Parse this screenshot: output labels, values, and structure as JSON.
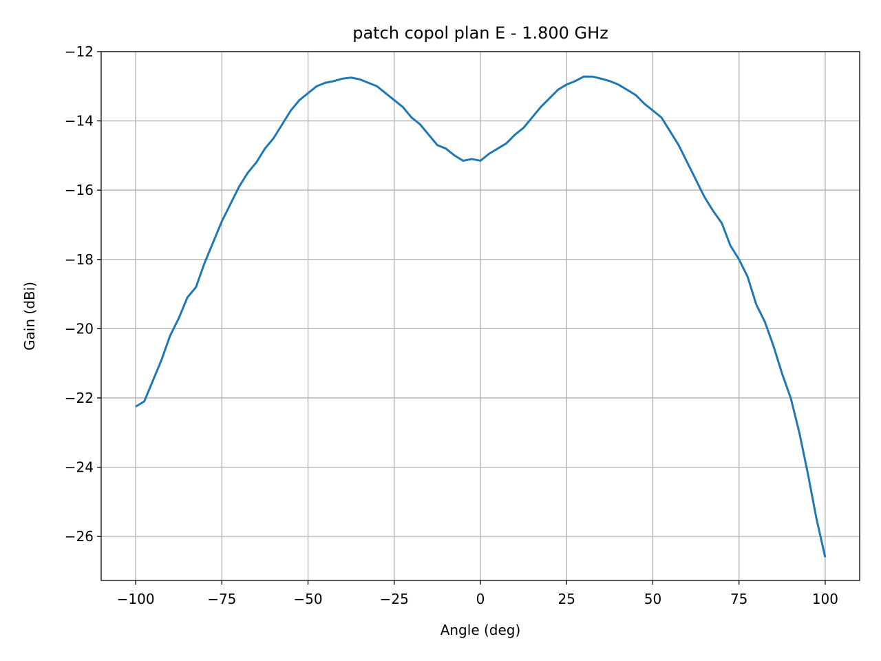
{
  "chart_data": {
    "type": "line",
    "title": "patch copol plan E - 1.800 GHz",
    "x_label": "Angle (deg)",
    "y_label": "Gain (dBi)",
    "x": [
      -100,
      -97.5,
      -95,
      -92.5,
      -90,
      -87.5,
      -85,
      -82.5,
      -80,
      -77.5,
      -75,
      -72.5,
      -70,
      -67.5,
      -65,
      -62.5,
      -60,
      -57.5,
      -55,
      -52.5,
      -50,
      -47.5,
      -45,
      -42.5,
      -40,
      -37.5,
      -35,
      -32.5,
      -30,
      -27.5,
      -25,
      -22.5,
      -20,
      -17.5,
      -15,
      -12.5,
      -10,
      -7.5,
      -5,
      -2.5,
      0,
      2.5,
      5,
      7.5,
      10,
      12.5,
      15,
      17.5,
      20,
      22.5,
      25,
      27.5,
      30,
      32.5,
      35,
      37.5,
      40,
      42.5,
      45,
      47.5,
      50,
      52.5,
      55,
      57.5,
      60,
      62.5,
      65,
      67.5,
      70,
      72.5,
      75,
      77.5,
      80,
      82.5,
      85,
      87.5,
      90,
      92.5,
      95,
      97.5,
      100
    ],
    "series": [
      {
        "name": "gain",
        "color": "#1f77b4",
        "values": [
          -22.25,
          -22.1,
          -21.5,
          -20.9,
          -20.2,
          -19.7,
          -19.1,
          -18.8,
          -18.1,
          -17.5,
          -16.9,
          -16.4,
          -15.9,
          -15.5,
          -15.2,
          -14.8,
          -14.5,
          -14.1,
          -13.7,
          -13.4,
          -13.2,
          -13.0,
          -12.9,
          -12.85,
          -12.78,
          -12.75,
          -12.8,
          -12.9,
          -13.0,
          -13.2,
          -13.4,
          -13.6,
          -13.9,
          -14.1,
          -14.4,
          -14.7,
          -14.8,
          -15.0,
          -15.15,
          -15.1,
          -15.15,
          -14.95,
          -14.8,
          -14.65,
          -14.4,
          -14.2,
          -13.9,
          -13.6,
          -13.35,
          -13.1,
          -12.95,
          -12.85,
          -12.72,
          -12.72,
          -12.78,
          -12.85,
          -12.95,
          -13.1,
          -13.25,
          -13.5,
          -13.7,
          -13.9,
          -14.3,
          -14.7,
          -15.2,
          -15.7,
          -16.2,
          -16.6,
          -16.95,
          -17.6,
          -18.0,
          -18.5,
          -19.3,
          -19.8,
          -20.5,
          -21.3,
          -22.0,
          -23.0,
          -24.2,
          -25.5,
          -26.6
        ]
      }
    ],
    "xlim": [
      -110,
      110
    ],
    "ylim": [
      -27.27,
      -12
    ],
    "xticks": [
      {
        "value": -100,
        "label": "−100"
      },
      {
        "value": -75,
        "label": "−75"
      },
      {
        "value": -50,
        "label": "−50"
      },
      {
        "value": -25,
        "label": "−25"
      },
      0,
      25,
      50,
      75,
      100
    ],
    "yticks": [
      {
        "value": -26,
        "label": "−26"
      },
      {
        "value": -24,
        "label": "−24"
      },
      {
        "value": -22,
        "label": "−22"
      },
      {
        "value": -20,
        "label": "−20"
      },
      {
        "value": -18,
        "label": "−18"
      },
      {
        "value": -16,
        "label": "−16"
      },
      {
        "value": -14,
        "label": "−14"
      },
      {
        "value": -12,
        "label": "−12"
      }
    ],
    "grid": true
  }
}
